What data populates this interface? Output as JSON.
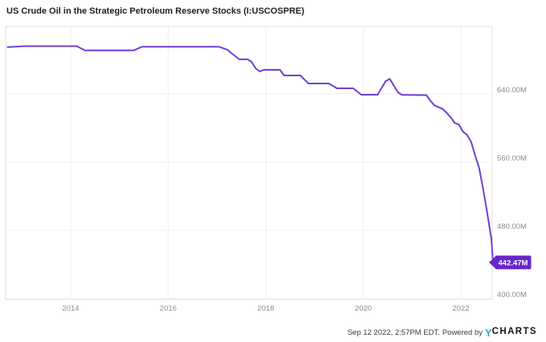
{
  "header": {
    "title": "US Crude Oil in the Strategic Petroleum Reserve Stocks (I:USCOSPRE)"
  },
  "chart_data": {
    "type": "line",
    "title": "US Crude Oil in the Strategic Petroleum Reserve Stocks (I:USCOSPRE)",
    "xlabel": "",
    "ylabel": "",
    "grid": true,
    "legend_position": "none",
    "x_range": [
      "2012-09",
      "2022-09"
    ],
    "ylim": [
      400,
      719
    ],
    "y_axis": {
      "side": "right",
      "ticks": [
        {
          "value": 640,
          "label": "640.00M"
        },
        {
          "value": 560,
          "label": "560.00M"
        },
        {
          "value": 480,
          "label": "480.00M"
        },
        {
          "value": 400,
          "label": "400.00M"
        }
      ]
    },
    "x_axis": {
      "ticks": [
        {
          "value": 2014,
          "label": "2014"
        },
        {
          "value": 2016,
          "label": "2016"
        },
        {
          "value": 2018,
          "label": "2018"
        },
        {
          "value": 2020,
          "label": "2020"
        },
        {
          "value": 2022,
          "label": "2022"
        }
      ]
    },
    "series": [
      {
        "name": "US Crude Oil in the Strategic Petroleum Reserve Stocks",
        "unit": "M",
        "points": [
          [
            "2012-09",
            694.9
          ],
          [
            "2013-01",
            696.0
          ],
          [
            "2014-02",
            696.0
          ],
          [
            "2014-04",
            691.0
          ],
          [
            "2015-04",
            691.0
          ],
          [
            "2015-06",
            695.2
          ],
          [
            "2017-01",
            695.2
          ],
          [
            "2017-03",
            692.0
          ],
          [
            "2017-05",
            684.2
          ],
          [
            "2017-06",
            680.6
          ],
          [
            "2017-08",
            680.6
          ],
          [
            "2017-09",
            677.6
          ],
          [
            "2017-10",
            670.1
          ],
          [
            "2017-11",
            666.4
          ],
          [
            "2017-12",
            668.2
          ],
          [
            "2018-04",
            668.2
          ],
          [
            "2018-05",
            661.6
          ],
          [
            "2018-09",
            661.6
          ],
          [
            "2018-11",
            652.2
          ],
          [
            "2019-04",
            652.2
          ],
          [
            "2019-06",
            646.6
          ],
          [
            "2019-10",
            646.6
          ],
          [
            "2019-12",
            639.1
          ],
          [
            "2020-04",
            639.1
          ],
          [
            "2020-06",
            655.0
          ],
          [
            "2020-07",
            657.6
          ],
          [
            "2020-09",
            642.0
          ],
          [
            "2020-10",
            639.0
          ],
          [
            "2021-04",
            638.6
          ],
          [
            "2021-05",
            632.0
          ],
          [
            "2021-06",
            626.5
          ],
          [
            "2021-08",
            622.5
          ],
          [
            "2021-09",
            617.8
          ],
          [
            "2021-10",
            612.5
          ],
          [
            "2021-11",
            606.0
          ],
          [
            "2021-12",
            604.0
          ],
          [
            "2022-01",
            596.0
          ],
          [
            "2022-02",
            592.0
          ],
          [
            "2022-03",
            584.0
          ],
          [
            "2022-04",
            568.0
          ],
          [
            "2022-05",
            553.0
          ],
          [
            "2022-06",
            528.0
          ],
          [
            "2022-07",
            500.0
          ],
          [
            "2022-08",
            470.0
          ],
          [
            "2022-09",
            442.47
          ]
        ]
      }
    ],
    "last_point": {
      "label": "442.47M",
      "value": 442.47
    },
    "colors": {
      "line": "#6f3fd5",
      "badge": "#6527cc",
      "grid": "#efefef",
      "border": "#e2e2e2",
      "tick_text": "#8c8c8c"
    }
  },
  "footer": {
    "timestamp": "Sep 12 2022, 2:57PM EDT.",
    "powered_by": "Powered by",
    "logo": {
      "y": "Y",
      "charts": "CHARTS",
      "y_color": "#2aa3dc"
    }
  }
}
